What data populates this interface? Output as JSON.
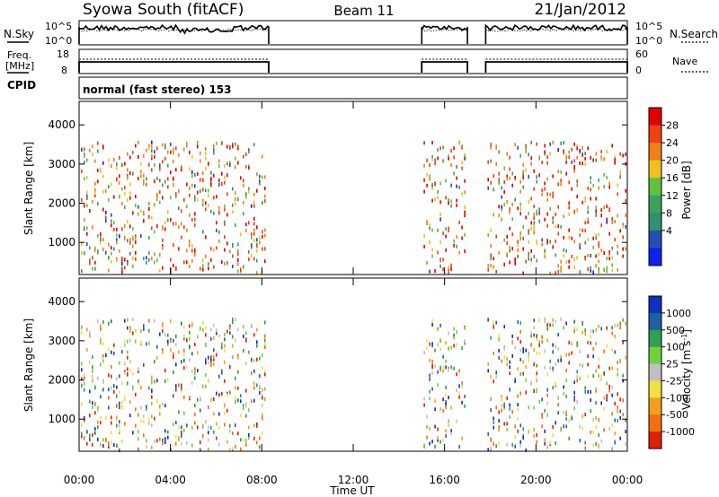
{
  "header": {
    "station": "Syowa South (fitACF)",
    "beam": "Beam 11",
    "date": "21/Jan/2012"
  },
  "noise_panel": {
    "left_label": "N.Sky",
    "right_label": "N.Search",
    "left_ticks": [
      "10^5",
      "10^0"
    ],
    "right_ticks": [
      "10^5",
      "10^0"
    ]
  },
  "freq_panel": {
    "left_label_line1": "Freq.",
    "left_label_line2": "[MHz]",
    "right_label": "Nave",
    "left_ticks": [
      "18",
      "8"
    ],
    "right_ticks": [
      "60",
      "0"
    ]
  },
  "cpid": {
    "label": "CPID",
    "mode": "normal (fast stereo) 153"
  },
  "axes": {
    "ylabel": "Slant Range [km]",
    "xlabel": "Time UT",
    "y_ticks": [
      "1000",
      "2000",
      "3000",
      "4000"
    ],
    "x_ticks": [
      "00:00",
      "04:00",
      "08:00",
      "12:00",
      "16:00",
      "20:00",
      "00:00"
    ]
  },
  "power_bar": {
    "title": "Power [dB]",
    "ticks": [
      "28",
      "24",
      "20",
      "16",
      "12",
      "8",
      "4"
    ],
    "colors": [
      "#e00000",
      "#f04010",
      "#f08018",
      "#f0c020",
      "#60c040",
      "#40a060",
      "#309070",
      "#2050b0",
      "#1020f0"
    ]
  },
  "velocity_bar": {
    "title": "Velocity [m s^-1]",
    "ticks": [
      "1000",
      "500",
      "100",
      "25",
      "-25",
      "-100",
      "-500",
      "-1000"
    ],
    "colors": [
      "#1030c0",
      "#2060a0",
      "#30a050",
      "#70d040",
      "#c0c0c0",
      "#f0e040",
      "#f0a020",
      "#f07010",
      "#e02000"
    ]
  },
  "chart_data": {
    "type": "heatmap",
    "x_range_hours": [
      0,
      24
    ],
    "y_range_km": [
      180,
      4600
    ],
    "data_segments_hours": [
      [
        0,
        8.3
      ],
      [
        15.0,
        17.0
      ],
      [
        17.8,
        24
      ]
    ],
    "range_ceiling_km": 3600
  }
}
